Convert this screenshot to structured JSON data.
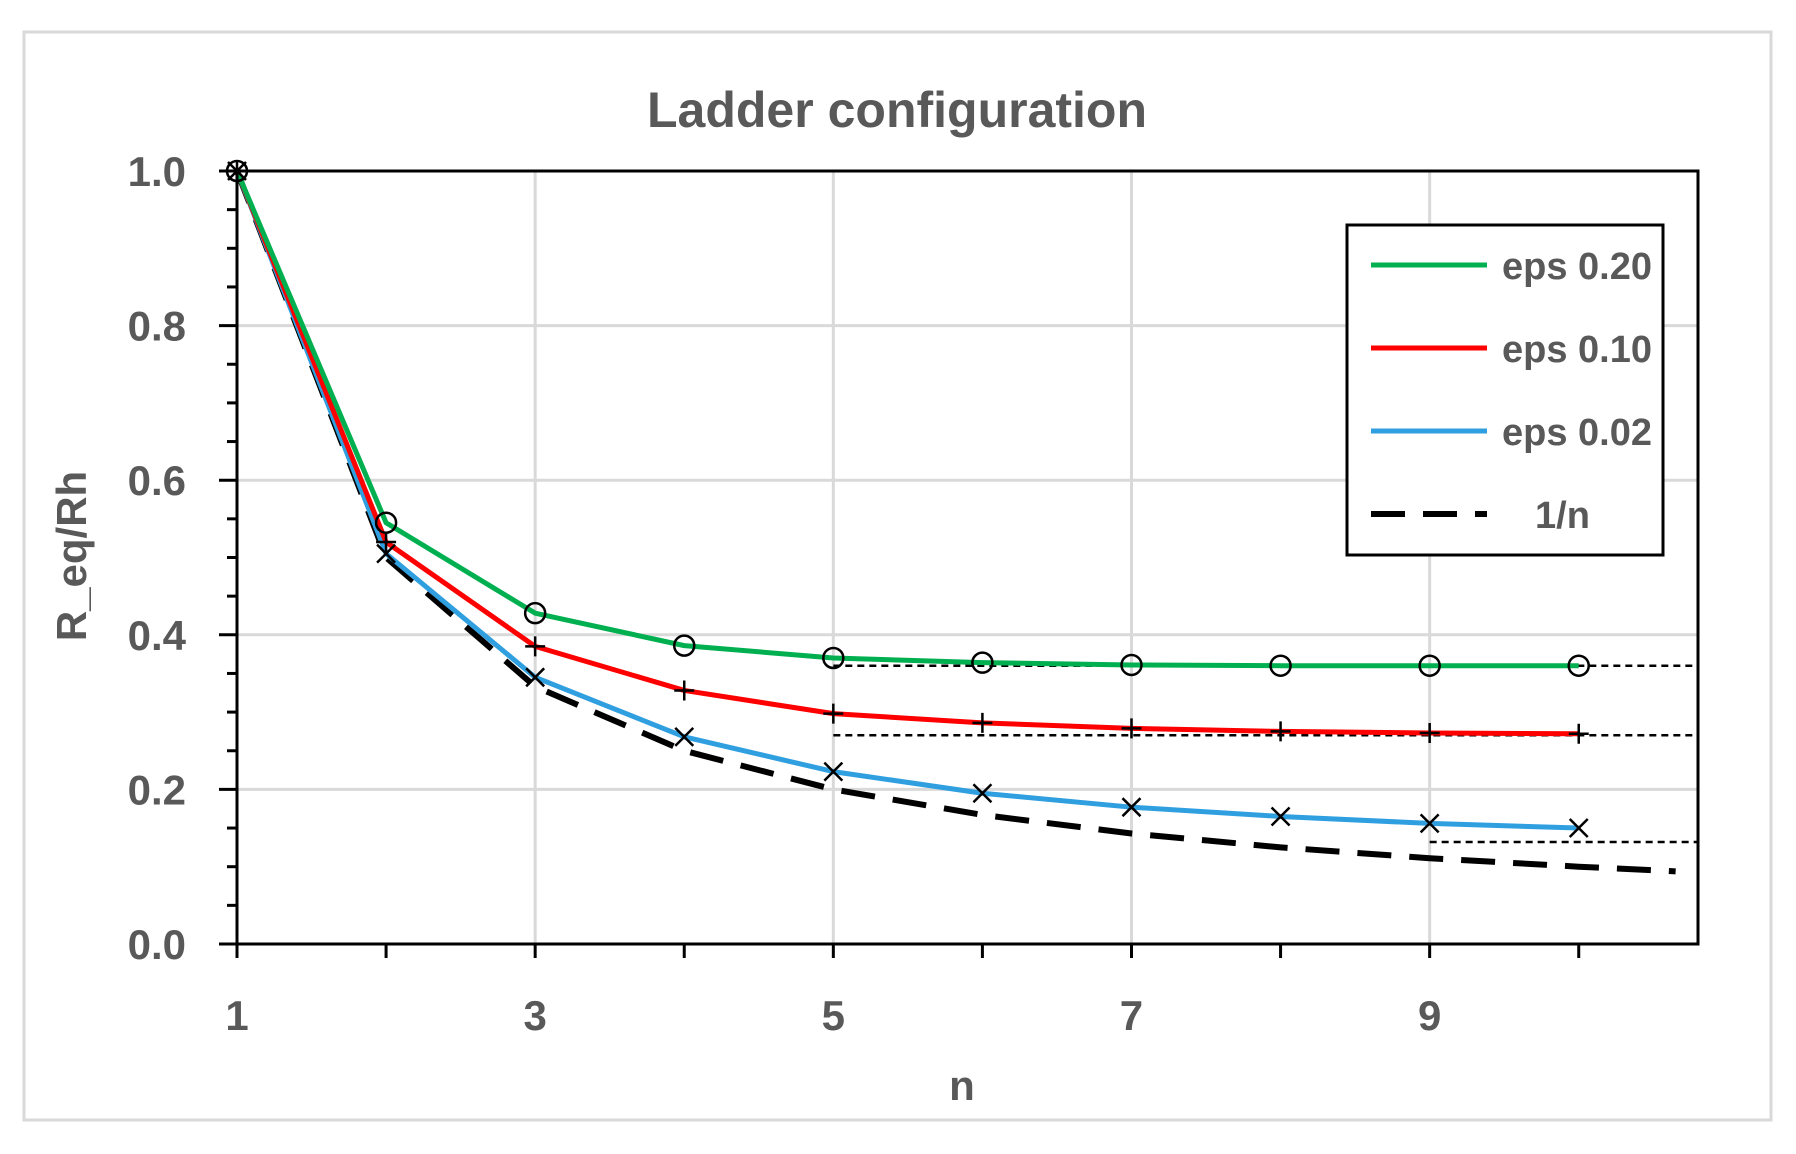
{
  "chart_data": {
    "type": "line",
    "title": "Ladder configuration",
    "xlabel": "n",
    "ylabel": "R_eq/Rh",
    "xlim": [
      1,
      10.8
    ],
    "ylim": [
      0,
      1.0
    ],
    "x_ticks": [
      "1",
      "3",
      "5",
      "7",
      "9"
    ],
    "y_ticks": [
      "0.0",
      "0.2",
      "0.4",
      "0.6",
      "0.8",
      "1.0"
    ],
    "grid": true,
    "legend_position": "top-right",
    "series": [
      {
        "name": "eps 0.20",
        "color": "#00b050",
        "marker": "circle",
        "x": [
          1,
          2,
          3,
          4,
          5,
          6,
          7,
          8,
          9,
          10
        ],
        "values": [
          1.0,
          0.545,
          0.428,
          0.386,
          0.37,
          0.364,
          0.361,
          0.36,
          0.36,
          0.36
        ]
      },
      {
        "name": "eps 0.10",
        "color": "#ff0000",
        "marker": "plus",
        "x": [
          1,
          2,
          3,
          4,
          5,
          6,
          7,
          8,
          9,
          10
        ],
        "values": [
          1.0,
          0.52,
          0.385,
          0.328,
          0.298,
          0.286,
          0.279,
          0.275,
          0.273,
          0.272
        ]
      },
      {
        "name": "eps 0.02",
        "color": "#2f9fe0",
        "marker": "cross",
        "x": [
          1,
          2,
          3,
          4,
          5,
          6,
          7,
          8,
          9,
          10
        ],
        "values": [
          1.0,
          0.505,
          0.345,
          0.268,
          0.223,
          0.195,
          0.177,
          0.165,
          0.156,
          0.15
        ]
      },
      {
        "name": "1/n",
        "color": "#000000",
        "dash": true,
        "x": [
          1,
          2,
          3,
          4,
          5,
          6,
          7,
          8,
          9,
          10,
          10.65
        ],
        "values": [
          1.0,
          0.5,
          0.333,
          0.25,
          0.2,
          0.167,
          0.143,
          0.125,
          0.111,
          0.1,
          0.094
        ]
      }
    ],
    "asymptotes": [
      {
        "y": 0.36,
        "x_from": 5,
        "x_to": 10.8
      },
      {
        "y": 0.27,
        "x_from": 5,
        "x_to": 10.8
      },
      {
        "y": 0.132,
        "x_from": 9,
        "x_to": 10.8
      }
    ]
  }
}
